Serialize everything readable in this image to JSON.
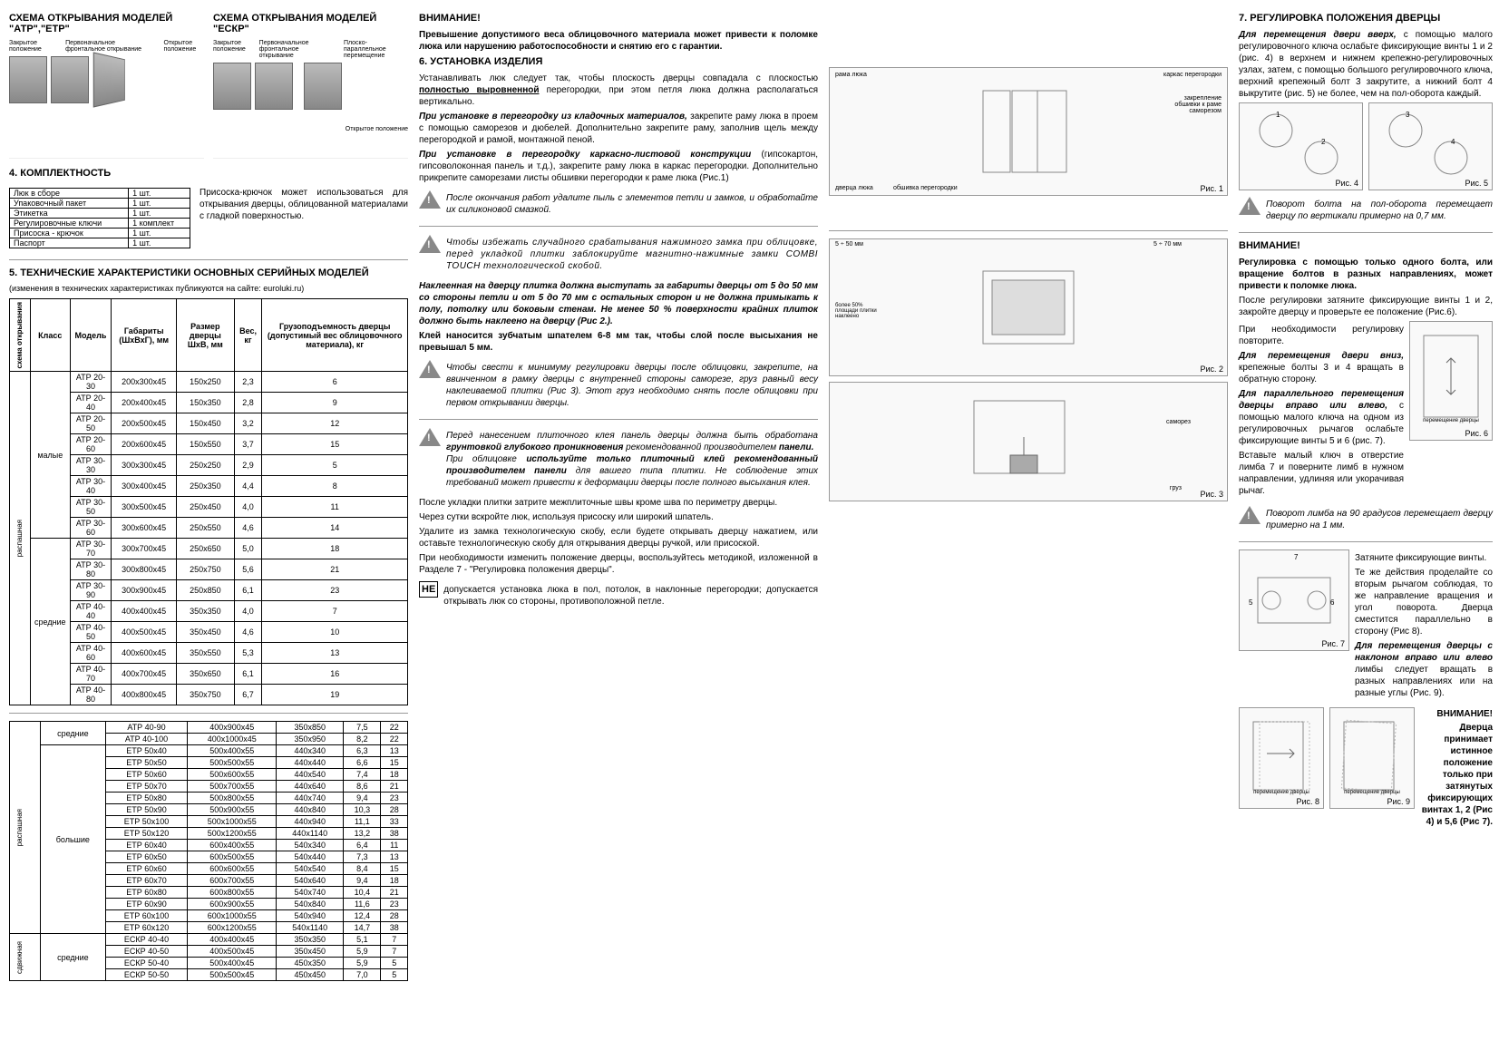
{
  "col1": {
    "scheme1_title": "СХЕМА ОТКРЫВАНИЯ МОДЕЛЕЙ \"АТР\",\"ЕТР\"",
    "scheme2_title": "СХЕМА ОТКРЫВАНИЯ МОДЕЛЕЙ \"ЕСКР\"",
    "pos_closed": "Закрытое положение",
    "pos_primary": "Первоначальное фронтальное открывание",
    "pos_open": "Открытое положение",
    "pos_parallel": "Плоско-параллельное перемещение",
    "section4_title": "4. КОМПЛЕКТНОСТЬ",
    "kit": [
      [
        "Люк в сборе",
        "1 шт."
      ],
      [
        "Упаковочный пакет",
        "1 шт."
      ],
      [
        "Этикетка",
        "1 шт."
      ],
      [
        "Регулировочные ключи",
        "1 комплект"
      ],
      [
        "Присоска - крючок",
        "1 шт."
      ],
      [
        "Паспорт",
        "1 шт."
      ]
    ],
    "suction_note": "Присоска-крючок может использоваться для открывания дверцы, облицованной материалами с гладкой поверхностью.",
    "section5_title": "5. ТЕХНИЧЕСКИЕ ХАРАКТЕРИСТИКИ ОСНОВНЫХ СЕРИЙНЫХ МОДЕЛЕЙ",
    "section5_sub": "(изменения в технических характеристиках публикуются на сайте: euroluki.ru)",
    "tbl_head": [
      "схема открывания",
      "Класс",
      "Модель",
      "Габариты (ШхВхГ), мм",
      "Размер дверцы ШхВ, мм",
      "Вес, кг",
      "Грузоподъемность дверцы (допустимый вес облицовочного материала), кг"
    ],
    "class_small": "малые",
    "class_med": "средние",
    "class_big": "большие",
    "scheme_rasp": "распашная",
    "scheme_sdv": "сдвижная",
    "tbl1": [
      [
        "АТР 20-30",
        "200х300х45",
        "150х250",
        "2,3",
        "6"
      ],
      [
        "АТР 20-40",
        "200х400х45",
        "150х350",
        "2,8",
        "9"
      ],
      [
        "АТР 20-50",
        "200х500х45",
        "150х450",
        "3,2",
        "12"
      ],
      [
        "АТР 20-60",
        "200х600х45",
        "150х550",
        "3,7",
        "15"
      ],
      [
        "АТР 30-30",
        "300х300х45",
        "250х250",
        "2,9",
        "5"
      ],
      [
        "АТР 30-40",
        "300х400х45",
        "250х350",
        "4,4",
        "8"
      ],
      [
        "АТР 30-50",
        "300х500х45",
        "250х450",
        "4,0",
        "11"
      ],
      [
        "АТР 30-60",
        "300х600х45",
        "250х550",
        "4,6",
        "14"
      ],
      [
        "АТР 30-70",
        "300х700х45",
        "250х650",
        "5,0",
        "18"
      ],
      [
        "АТР 30-80",
        "300х800х45",
        "250х750",
        "5,6",
        "21"
      ],
      [
        "АТР 30-90",
        "300х900х45",
        "250х850",
        "6,1",
        "23"
      ],
      [
        "АТР 40-40",
        "400х400х45",
        "350х350",
        "4,0",
        "7"
      ],
      [
        "АТР 40-50",
        "400х500х45",
        "350х450",
        "4,6",
        "10"
      ],
      [
        "АТР 40-60",
        "400х600х45",
        "350х550",
        "5,3",
        "13"
      ],
      [
        "АТР 40-70",
        "400х700х45",
        "350х650",
        "6,1",
        "16"
      ],
      [
        "АТР 40-80",
        "400х800х45",
        "350х750",
        "6,7",
        "19"
      ]
    ],
    "tbl2": [
      [
        "средние",
        "АТР 40-90",
        "400х900х45",
        "350х850",
        "7,5",
        "22"
      ],
      [
        "",
        "АТР 40-100",
        "400х1000х45",
        "350х950",
        "8,2",
        "22"
      ],
      [
        "",
        "ЕТР 50х40",
        "500х400х55",
        "440х340",
        "6,3",
        "13"
      ],
      [
        "",
        "ЕТР 50х50",
        "500х500х55",
        "440х440",
        "6,6",
        "15"
      ],
      [
        "",
        "ЕТР 50х60",
        "500х600х55",
        "440х540",
        "7,4",
        "18"
      ],
      [
        "",
        "ЕТР 50х70",
        "500х700х55",
        "440х640",
        "8,6",
        "21"
      ],
      [
        "",
        "ЕТР 50х80",
        "500х800х55",
        "440х740",
        "9,4",
        "23"
      ],
      [
        "",
        "ЕТР 50х90",
        "500х900х55",
        "440х840",
        "10,3",
        "28"
      ],
      [
        "большие",
        "ЕТР 50х100",
        "500х1000х55",
        "440х940",
        "11,1",
        "33"
      ],
      [
        "",
        "ЕТР 50х120",
        "500х1200х55",
        "440х1140",
        "13,2",
        "38"
      ],
      [
        "",
        "ЕТР 60х40",
        "600х400х55",
        "540х340",
        "6,4",
        "11"
      ],
      [
        "",
        "ЕТР 60х50",
        "600х500х55",
        "540х440",
        "7,3",
        "13"
      ],
      [
        "",
        "ЕТР 60х60",
        "600х600х55",
        "540х540",
        "8,4",
        "15"
      ],
      [
        "",
        "ЕТР 60х70",
        "600х700х55",
        "540х640",
        "9,4",
        "18"
      ],
      [
        "",
        "ЕТР 60х80",
        "600х800х55",
        "540х740",
        "10,4",
        "21"
      ],
      [
        "",
        "ЕТР 60х90",
        "600х900х55",
        "540х840",
        "11,6",
        "23"
      ],
      [
        "",
        "ЕТР 60х100",
        "600х1000х55",
        "540х940",
        "12,4",
        "28"
      ],
      [
        "",
        "ЕТР 60х120",
        "600х1200х55",
        "540х1140",
        "14,7",
        "38"
      ],
      [
        "",
        "ЕСКР 40-40",
        "400х400х45",
        "350х350",
        "5,1",
        "7"
      ],
      [
        "средние",
        "ЕСКР 40-50",
        "400х500х45",
        "350х450",
        "5,9",
        "7"
      ],
      [
        "",
        "ЕСКР 50-40",
        "500х400х45",
        "450х350",
        "5,9",
        "5"
      ],
      [
        "",
        "ЕСКР 50-50",
        "500х500х45",
        "450х450",
        "7,0",
        "5"
      ]
    ]
  },
  "col2": {
    "attention": "ВНИМАНИЕ!",
    "attention_text": "Превышение допустимого веса облицовочного материала может привести к поломке люка или нарушению работоспособности и снятию его с гарантии.",
    "section6_title": "6. УСТАНОВКА ИЗДЕЛИЯ",
    "p1a": "Устанавливать люк следует так, чтобы плоскость дверцы совпадала с плоскостью ",
    "p1b": "полностью выровненной",
    "p1c": " перегородки, при этом петля люка должна располагаться вертикально.",
    "p2a": "При установке в перегородку из кладочных материалов,",
    "p2b": " закрепите раму люка в проем с помощью саморезов и дюбелей. Дополнительно закрепите раму, заполнив щель между перегородкой и рамой, монтажной пеной.",
    "p3a": "При установке в перегородку каркасно-листовой конструкции ",
    "p3b": "(гипсокартон, гипсоволоконная панель и т.д.), закрепите раму люка в каркас перегородки. Дополнительно прикрепите саморезами листы обшивки перегородки к раме люка (Рис.1)",
    "fig1": "Рис. 1",
    "fig1_labels": {
      "a": "рама люка",
      "b": "каркас перегородки",
      "c": "закрепление обшивки к раме саморезом",
      "d": "дверца люка",
      "e": "обшивка перегородки"
    },
    "note1": "После окончания работ удалите пыль с элементов петли и замков, и обработайте их силиконовой смазкой.",
    "note2": "Чтобы избежать случайного срабатывания нажимного замка при облицовке, перед укладкой плитки заблокируйте магнитно-нажимные замки COMBI TOUCH технологической скобой.",
    "p4": "Наклеенная на дверцу плитка должна выступать за габариты дверцы от 5 до 50 мм со стороны петли и от 5 до 70 мм с остальных сторон и не должна примыкать к полу, потолку или боковым стенам. Не менее 50 % поверхности крайних плиток должно быть наклеено на дверцу (Рис 2.).",
    "p5": "Клей наносится зубчатым шпателем 6-8 мм так, чтобы слой после высыхания не превышал 5 мм.",
    "note3": "Чтобы свести к минимуму регулировки дверцы после облицовки, закрепите, на ввинченном в рамку дверцы с внутренней стороны саморезе, груз равный весу наклеиваемой плитки (Рис 3). Этот груз необходимо снять после облицовки при первом открывании дверцы.",
    "fig2": "Рис. 2",
    "fig3": "Рис. 3",
    "fig2_labels": {
      "a": "5 ÷ 50 мм",
      "b": "5 ÷ 70 мм",
      "c": "более 50% площади плитки наклеено"
    },
    "fig3_labels": {
      "a": "саморез",
      "b": "груз"
    },
    "note4a": "Перед нанесением плиточного клея панель дверцы должна быть обработана ",
    "note4b": "грунтовкой глубокого проникновения",
    "note4c": " рекомендованной производителем ",
    "note4d": "панели.",
    "note4e": "При облицовке ",
    "note4f": "используйте только плиточный клей рекомендованный производителем панели",
    "note4g": " для вашего типа плитки. Не соблюдение этих требований может привести к деформации дверцы после полного высыхания клея.",
    "p6": "После укладки плитки затрите межплиточные швы кроме шва по периметру дверцы.",
    "p7": "Через сутки вскройте люк, используя присоску или широкий шпатель.",
    "p8": "Удалите из замка технологическую скобу, если будете открывать дверцу нажатием, или оставьте технологическую скобу для открывания дверцы ручкой, или присоской.",
    "p9": "При необходимости изменить положение дверцы, воспользуйтесь методикой, изложенной в Разделе 7 - \"Регулировка положения дверцы\".",
    "ne_label": "НЕ",
    "ne_text": "допускается установка люка в пол, потолок, в наклонные перегородки; допускается открывать люк со стороны, противоположной петле."
  },
  "col3": {
    "section7_title": "7. РЕГУЛИРОВКА ПОЛОЖЕНИЯ ДВЕРЦЫ",
    "p1a": "Для перемещения двери вверх,",
    "p1b": " с помощью малого регулировочного ключа ослабьте фиксирующие винты 1 и 2 (рис. 4) в верхнем и нижнем крепежно-регулировочных узлах, затем, с помощью большого регулировочного ключа, верхний крепежный болт 3 закрутите, а нижний болт 4 выкрутите (рис. 5) не более, чем на пол-оборота каждый.",
    "fig4": "Рис. 4",
    "fig5": "Рис. 5",
    "note1": "Поворот болта на пол-оборота перемещает дверцу по вертикали примерно на 0,7 мм.",
    "attention": "ВНИМАНИЕ!",
    "attention_text": "Регулировка с помощью только одного болта, или вращение болтов в разных направлениях, может привести к поломке люка.",
    "p2": "После регулировки затяните фиксирующие винты 1 и 2, закройте дверцу и проверьте ее положение (Рис.6).",
    "p3": "При необходимости регулировку повторите.",
    "p4a": "Для перемещения двери вниз,",
    "p4b": " крепежные болты 3 и 4 вращать в обратную сторону.",
    "p5a": "Для параллельного перемещения дверцы вправо или влево,",
    "p5b": " с помощью малого ключа на одном из регулировочных рычагов ослабьте фиксирующие винты 5 и 6 (рис. 7).",
    "p6": "Вставьте малый ключ в отверстие лимба 7 и поверните лимб в нужном направлении, удлиняя или укорачивая рычаг.",
    "fig6": "Рис. 6",
    "fig6_label": "перемещение дверцы",
    "note2": "Поворот лимба на 90 градусов перемещает дверцу примерно на 1 мм.",
    "p7": "Затяните фиксирующие винты.",
    "p8": "Те же действия проделайте со вторым рычагом соблюдая, то же направление вращения и угол поворота. Дверца сместится параллельно в сторону (Рис 8).",
    "p9a": "Для перемещения дверцы с наклоном вправо или влево",
    "p9b": " лимбы следует вращать в разных направлениях или на разные углы (Рис. 9).",
    "fig7": "Рис. 7",
    "fig8": "Рис. 8",
    "fig9": "Рис. 9",
    "fig89_label": "перемещение дверцы",
    "attention2": "ВНИМАНИЕ!",
    "attention2_text": "Дверца принимает истинное положение только при затянутых фиксирующих винтах 1, 2 (Рис 4) и 5,6 (Рис 7)."
  }
}
